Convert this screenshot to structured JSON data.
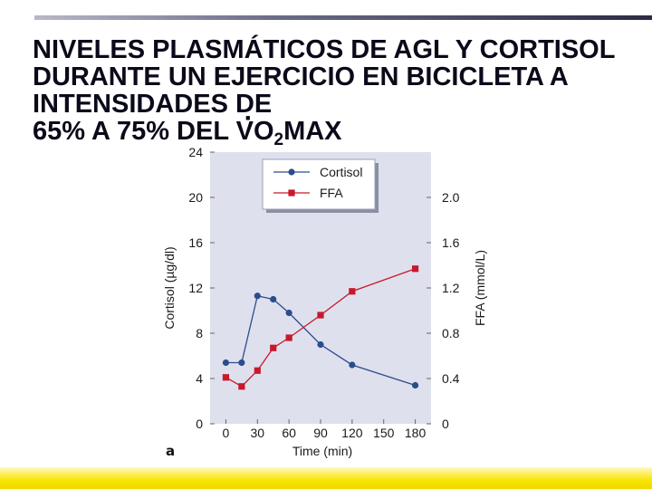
{
  "slide": {
    "title_lines": [
      "NIVELES PLASMÁTICOS DE AGL Y CORTISOL",
      "DURANTE UN EJERCICIO EN BICICLETA A",
      "INTENSIDADES DE"
    ],
    "title_last_prefix": "65% A 75% DEL ",
    "title_last_v": "V",
    "title_last_o": "O",
    "title_last_sub": "2",
    "title_last_suffix": "MAX",
    "panel_label": "a",
    "accent_color": "#f7e600"
  },
  "chart_data": {
    "type": "line",
    "xlabel": "Time (min)",
    "ylabel_left": "Cortisol (µg/dl)",
    "ylabel_right": "FFA (mmol/L)",
    "x_ticks": [
      0,
      30,
      60,
      90,
      120,
      150,
      180
    ],
    "x_tick_labels": [
      "0",
      "30",
      "60",
      "90",
      "120",
      "150",
      "180"
    ],
    "xlim": [
      -15,
      195
    ],
    "y_left_ticks": [
      0,
      4,
      8,
      12,
      16,
      20,
      24
    ],
    "y_left_tick_labels": [
      "0",
      "4",
      "8",
      "12",
      "16",
      "20",
      "24"
    ],
    "ylim_left": [
      0,
      24
    ],
    "y_right_ticks": [
      0,
      0.4,
      0.8,
      1.2,
      1.6,
      2.0
    ],
    "y_right_tick_labels": [
      "0",
      "0.4",
      "0.8",
      "1.2",
      "1.6",
      "2.0"
    ],
    "ylim_right": [
      0,
      2.4
    ],
    "grid": false,
    "legend_position": "top-center",
    "plot_background": "#dfe0ee",
    "series": [
      {
        "name": "Cortisol",
        "axis": "left",
        "marker": "circle",
        "color": "#2c4d8c",
        "x": [
          0,
          15,
          30,
          45,
          60,
          90,
          120,
          180
        ],
        "y": [
          5.4,
          5.4,
          11.3,
          11.0,
          9.8,
          7.0,
          5.2,
          3.4
        ]
      },
      {
        "name": "FFA",
        "axis": "right",
        "marker": "square",
        "color": "#c8192a",
        "x": [
          0,
          15,
          30,
          45,
          60,
          90,
          120,
          180
        ],
        "y": [
          0.41,
          0.33,
          0.47,
          0.67,
          0.76,
          0.96,
          1.17,
          1.37
        ]
      }
    ]
  }
}
